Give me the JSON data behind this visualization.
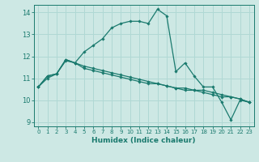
{
  "xlabel": "Humidex (Indice chaleur)",
  "background_color": "#cde8e4",
  "grid_color": "#b0d8d4",
  "line_color": "#1a7a6e",
  "xlim": [
    -0.5,
    23.5
  ],
  "ylim": [
    8.8,
    14.35
  ],
  "xticks": [
    0,
    1,
    2,
    3,
    4,
    5,
    6,
    7,
    8,
    9,
    10,
    11,
    12,
    13,
    14,
    15,
    16,
    17,
    18,
    19,
    20,
    21,
    22,
    23
  ],
  "yticks": [
    9,
    10,
    11,
    12,
    13,
    14
  ],
  "series": [
    {
      "x": [
        0,
        1,
        2,
        3,
        4,
        5,
        6,
        7,
        8,
        9,
        10,
        11,
        12,
        13,
        14,
        15,
        16,
        17,
        18,
        19,
        20,
        21,
        22,
        23
      ],
      "y": [
        10.6,
        11.0,
        11.2,
        11.8,
        11.7,
        12.2,
        12.5,
        12.8,
        13.3,
        13.5,
        13.6,
        13.6,
        13.5,
        14.15,
        13.85,
        11.3,
        11.7,
        11.1,
        10.6,
        10.6,
        9.9,
        9.1,
        10.0,
        9.9
      ]
    },
    {
      "x": [
        0,
        1,
        2,
        3,
        4,
        5,
        6,
        7,
        8,
        9,
        10,
        11,
        12,
        13,
        14,
        15,
        16,
        17,
        18,
        19,
        20,
        21,
        22,
        23
      ],
      "y": [
        10.6,
        11.1,
        11.2,
        11.85,
        11.7,
        11.55,
        11.45,
        11.35,
        11.25,
        11.15,
        11.05,
        10.95,
        10.85,
        10.75,
        10.65,
        10.55,
        10.55,
        10.45,
        10.45,
        10.35,
        10.25,
        10.15,
        10.05,
        9.9
      ]
    },
    {
      "x": [
        0,
        1,
        2,
        3,
        4,
        5,
        6,
        7,
        8,
        9,
        10,
        11,
        12,
        13,
        14,
        15,
        16,
        17,
        18,
        19,
        20,
        21,
        22,
        23
      ],
      "y": [
        10.6,
        11.1,
        11.2,
        11.85,
        11.7,
        11.45,
        11.35,
        11.25,
        11.15,
        11.05,
        10.95,
        10.85,
        10.75,
        10.75,
        10.65,
        10.55,
        10.45,
        10.45,
        10.35,
        10.25,
        10.15,
        10.15,
        10.05,
        9.9
      ]
    }
  ]
}
